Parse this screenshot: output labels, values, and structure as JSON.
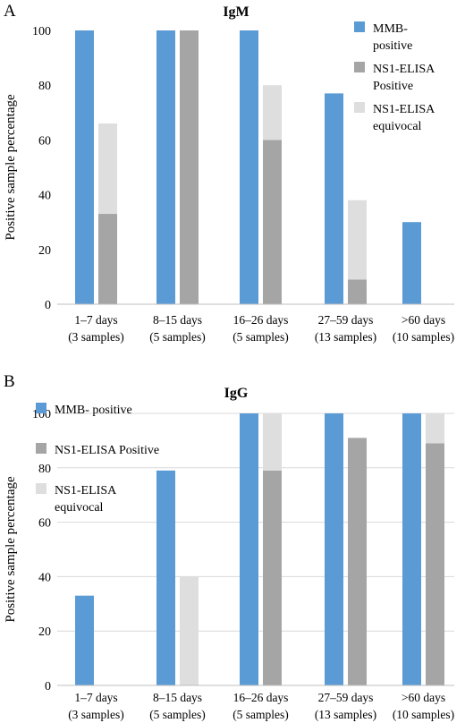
{
  "chart_data": [
    {
      "type": "bar",
      "panel": "A",
      "title": "IgM",
      "ylabel": "Positive sample percentage",
      "xlabel": "",
      "ylim": [
        0,
        100
      ],
      "yticks": [
        0,
        20,
        40,
        60,
        80,
        100
      ],
      "grid": false,
      "legend_placement": "top-right",
      "categories": [
        [
          "1–7 days",
          "(3 samples)"
        ],
        [
          "8–15 days",
          "(5 samples)"
        ],
        [
          "16–26 days",
          "(5 samples)"
        ],
        [
          "27–59 days",
          "(13 samples)"
        ],
        [
          ">60 days",
          "(10 samples)"
        ]
      ],
      "series": [
        {
          "name": [
            "MMB-",
            "positive"
          ],
          "color": "#5b9bd5",
          "values": [
            100,
            100,
            100,
            77,
            30
          ]
        },
        {
          "name": [
            "NS1-ELISA",
            "Positive"
          ],
          "color": "#a5a5a5",
          "values": [
            33,
            100,
            60,
            9,
            0
          ]
        },
        {
          "name": [
            "NS1-ELISA",
            "equivocal"
          ],
          "color": "#dedede",
          "values": [
            33,
            0,
            20,
            29,
            0
          ],
          "stacked_on": 1
        }
      ]
    },
    {
      "type": "bar",
      "panel": "B",
      "title": "IgG",
      "ylabel": "Positive sample percentage",
      "xlabel": "",
      "ylim": [
        0,
        100
      ],
      "yticks": [
        0,
        20,
        40,
        60,
        80,
        100
      ],
      "grid": true,
      "legend_placement": "top-left",
      "categories": [
        [
          "1–7 days",
          "(3 samples)"
        ],
        [
          "8–15 days",
          "(5 samples)"
        ],
        [
          "16–26 days",
          "(5 samples)"
        ],
        [
          "27–59 days",
          "(13 samples)"
        ],
        [
          ">60 days",
          "(10 samples)"
        ]
      ],
      "series": [
        {
          "name": [
            "MMB- positive"
          ],
          "color": "#5b9bd5",
          "values": [
            33,
            79,
            100,
            100,
            100
          ]
        },
        {
          "name": [
            "NS1-ELISA Positive"
          ],
          "color": "#a5a5a5",
          "values": [
            0,
            0,
            79,
            91,
            89
          ]
        },
        {
          "name": [
            "NS1-ELISA",
            "equivocal"
          ],
          "color": "#dedede",
          "values": [
            0,
            40,
            21,
            0,
            11
          ],
          "stacked_on": 1
        }
      ]
    }
  ]
}
